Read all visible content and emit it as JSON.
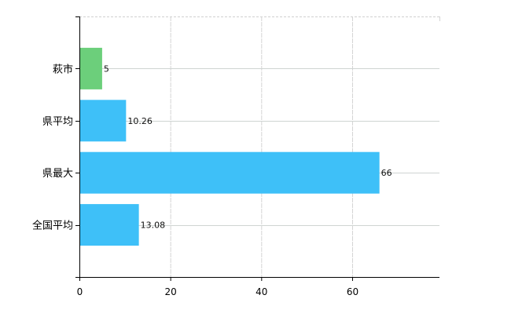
{
  "chart_data": {
    "type": "bar",
    "orientation": "horizontal",
    "categories": [
      "萩市",
      "県平均",
      "県最大",
      "全国平均"
    ],
    "values": [
      5,
      10.26,
      66,
      13.08
    ],
    "data_labels": [
      "5",
      "10.26",
      "66",
      "13.08"
    ],
    "bar_colors": [
      "#6ccf7b",
      "#3ec0f8",
      "#3ec0f8",
      "#3ec0f8"
    ],
    "xlim": [
      0,
      79.2
    ],
    "x_ticks": [
      0,
      20,
      40,
      60
    ],
    "x_tick_labels": [
      "0",
      "20",
      "40",
      "60"
    ],
    "title": "",
    "xlabel": "",
    "ylabel": "",
    "grid": true,
    "legend": "none"
  }
}
